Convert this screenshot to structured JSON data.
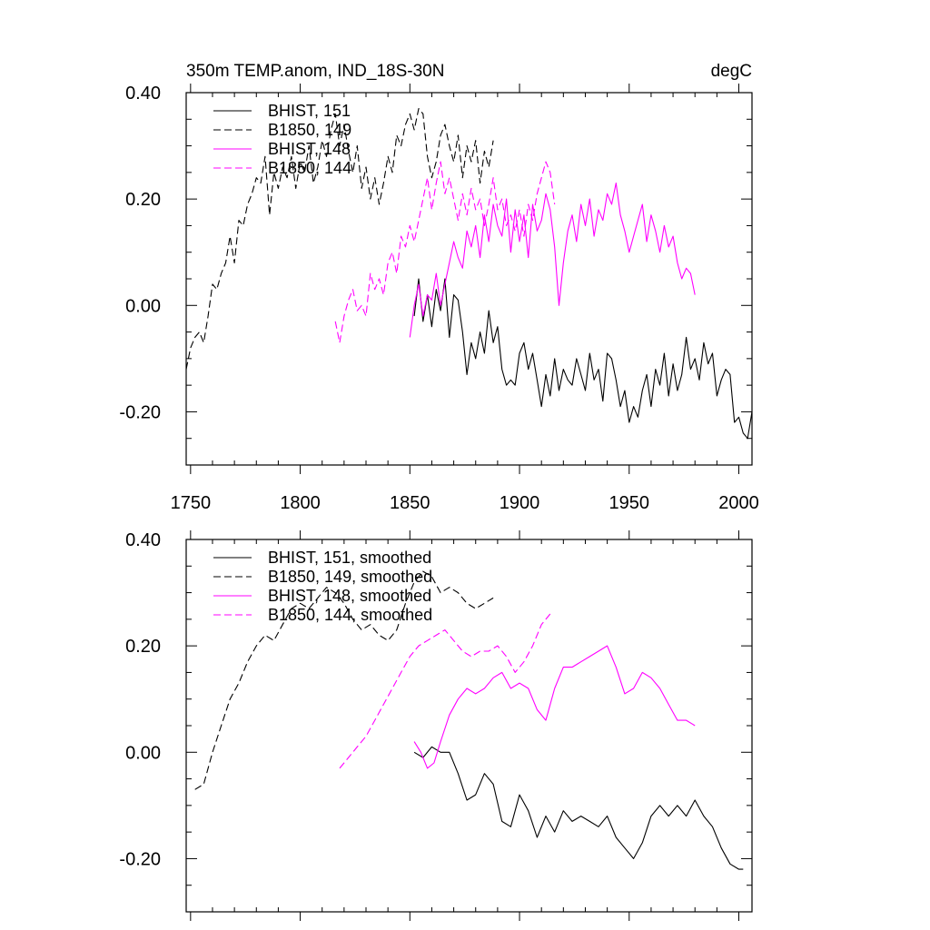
{
  "chart_data": [
    {
      "type": "line",
      "title": "350m TEMP.anom, IND_18S-30N",
      "units": "degC",
      "xlim": [
        1748,
        2006
      ],
      "ylim": [
        -0.3,
        0.4
      ],
      "x_ticks": [
        1750,
        1800,
        1850,
        1900,
        1950,
        2000
      ],
      "x_tick_labels": [
        "1750",
        "1800",
        "1850",
        "1900",
        "1950",
        "2000"
      ],
      "y_ticks": [
        -0.2,
        0.0,
        0.2,
        0.4
      ],
      "y_tick_labels": [
        "-0.20",
        "0.00",
        "0.20",
        "0.40"
      ],
      "series": [
        {
          "name": "BHIST, 151",
          "color": "#000000",
          "dash": "solid",
          "x": [
            1852,
            1854,
            1856,
            1858,
            1860,
            1862,
            1864,
            1866,
            1868,
            1870,
            1872,
            1874,
            1876,
            1878,
            1880,
            1882,
            1884,
            1886,
            1888,
            1890,
            1892,
            1894,
            1896,
            1898,
            1900,
            1902,
            1904,
            1906,
            1908,
            1910,
            1912,
            1914,
            1916,
            1918,
            1920,
            1922,
            1924,
            1926,
            1928,
            1930,
            1932,
            1934,
            1936,
            1938,
            1940,
            1942,
            1944,
            1946,
            1948,
            1950,
            1952,
            1954,
            1956,
            1958,
            1960,
            1962,
            1964,
            1966,
            1968,
            1970,
            1972,
            1974,
            1976,
            1978,
            1980,
            1982,
            1984,
            1986,
            1988,
            1990,
            1992,
            1994,
            1996,
            1998,
            2000,
            2002,
            2004,
            2006
          ],
          "y": [
            -0.02,
            0.05,
            -0.03,
            0.02,
            -0.04,
            0.03,
            -0.01,
            0.05,
            -0.06,
            0.02,
            0.01,
            -0.05,
            -0.13,
            -0.07,
            -0.1,
            -0.05,
            -0.09,
            -0.01,
            -0.07,
            -0.04,
            -0.12,
            -0.15,
            -0.14,
            -0.15,
            -0.09,
            -0.07,
            -0.12,
            -0.09,
            -0.14,
            -0.19,
            -0.13,
            -0.17,
            -0.1,
            -0.16,
            -0.12,
            -0.14,
            -0.15,
            -0.1,
            -0.13,
            -0.16,
            -0.09,
            -0.14,
            -0.12,
            -0.18,
            -0.09,
            -0.1,
            -0.14,
            -0.19,
            -0.16,
            -0.22,
            -0.19,
            -0.21,
            -0.16,
            -0.13,
            -0.19,
            -0.12,
            -0.15,
            -0.09,
            -0.17,
            -0.11,
            -0.16,
            -0.13,
            -0.06,
            -0.12,
            -0.1,
            -0.14,
            -0.07,
            -0.11,
            -0.09,
            -0.17,
            -0.14,
            -0.12,
            -0.13,
            -0.22,
            -0.21,
            -0.24,
            -0.25,
            -0.2
          ]
        },
        {
          "name": "B1850, 149",
          "color": "#000000",
          "dash": "dashed",
          "x": [
            1748,
            1750,
            1752,
            1754,
            1756,
            1758,
            1760,
            1762,
            1764,
            1766,
            1768,
            1770,
            1772,
            1774,
            1776,
            1778,
            1780,
            1782,
            1784,
            1786,
            1788,
            1790,
            1792,
            1794,
            1796,
            1798,
            1800,
            1802,
            1804,
            1806,
            1808,
            1810,
            1812,
            1814,
            1816,
            1818,
            1820,
            1822,
            1824,
            1826,
            1828,
            1830,
            1832,
            1834,
            1836,
            1838,
            1840,
            1842,
            1844,
            1846,
            1848,
            1850,
            1852,
            1854,
            1856,
            1858,
            1860,
            1862,
            1864,
            1866,
            1868,
            1870,
            1872,
            1874,
            1876,
            1878,
            1880,
            1882,
            1884,
            1886,
            1888
          ],
          "y": [
            -0.12,
            -0.08,
            -0.06,
            -0.05,
            -0.07,
            -0.02,
            0.04,
            0.03,
            0.06,
            0.08,
            0.13,
            0.08,
            0.16,
            0.15,
            0.19,
            0.21,
            0.24,
            0.23,
            0.28,
            0.17,
            0.25,
            0.22,
            0.26,
            0.24,
            0.28,
            0.22,
            0.27,
            0.25,
            0.3,
            0.23,
            0.26,
            0.31,
            0.28,
            0.33,
            0.36,
            0.3,
            0.34,
            0.29,
            0.25,
            0.3,
            0.22,
            0.26,
            0.2,
            0.24,
            0.19,
            0.23,
            0.28,
            0.25,
            0.32,
            0.3,
            0.34,
            0.36,
            0.33,
            0.37,
            0.36,
            0.28,
            0.24,
            0.27,
            0.32,
            0.34,
            0.3,
            0.27,
            0.32,
            0.24,
            0.3,
            0.27,
            0.31,
            0.23,
            0.29,
            0.26,
            0.31
          ]
        },
        {
          "name": "BHIST, 148",
          "color": "#ff00ff",
          "dash": "solid",
          "x": [
            1850,
            1852,
            1854,
            1856,
            1858,
            1860,
            1862,
            1864,
            1866,
            1868,
            1870,
            1872,
            1874,
            1876,
            1878,
            1880,
            1882,
            1884,
            1886,
            1888,
            1890,
            1892,
            1894,
            1896,
            1898,
            1900,
            1902,
            1904,
            1906,
            1908,
            1910,
            1912,
            1914,
            1916,
            1918,
            1920,
            1922,
            1924,
            1926,
            1928,
            1930,
            1932,
            1934,
            1936,
            1938,
            1940,
            1942,
            1944,
            1946,
            1948,
            1950,
            1952,
            1954,
            1956,
            1958,
            1960,
            1962,
            1964,
            1966,
            1968,
            1970,
            1972,
            1974,
            1976,
            1978,
            1980
          ],
          "y": [
            -0.06,
            0.0,
            0.04,
            -0.02,
            0.02,
            0.01,
            0.06,
            0.0,
            0.04,
            0.08,
            0.12,
            0.09,
            0.07,
            0.14,
            0.11,
            0.15,
            0.09,
            0.17,
            0.12,
            0.19,
            0.15,
            0.13,
            0.2,
            0.1,
            0.18,
            0.12,
            0.17,
            0.09,
            0.19,
            0.14,
            0.16,
            0.21,
            0.18,
            0.11,
            0.0,
            0.08,
            0.14,
            0.17,
            0.12,
            0.19,
            0.15,
            0.2,
            0.13,
            0.18,
            0.16,
            0.21,
            0.19,
            0.23,
            0.17,
            0.14,
            0.1,
            0.13,
            0.16,
            0.19,
            0.12,
            0.17,
            0.14,
            0.1,
            0.15,
            0.11,
            0.13,
            0.08,
            0.05,
            0.07,
            0.06,
            0.02
          ]
        },
        {
          "name": "B1850, 144",
          "color": "#ff00ff",
          "dash": "dashed",
          "x": [
            1816,
            1818,
            1820,
            1822,
            1824,
            1826,
            1828,
            1830,
            1832,
            1834,
            1836,
            1838,
            1840,
            1842,
            1844,
            1846,
            1848,
            1850,
            1852,
            1854,
            1856,
            1858,
            1860,
            1862,
            1864,
            1866,
            1868,
            1870,
            1872,
            1874,
            1876,
            1878,
            1880,
            1882,
            1884,
            1886,
            1888,
            1890,
            1892,
            1894,
            1896,
            1898,
            1900,
            1902,
            1904,
            1906,
            1908,
            1910,
            1912,
            1914,
            1916
          ],
          "y": [
            -0.03,
            -0.07,
            -0.02,
            0.01,
            0.03,
            -0.01,
            0.0,
            -0.02,
            0.06,
            0.03,
            0.05,
            0.02,
            0.08,
            0.1,
            0.06,
            0.13,
            0.11,
            0.15,
            0.12,
            0.16,
            0.2,
            0.24,
            0.18,
            0.23,
            0.27,
            0.21,
            0.24,
            0.2,
            0.16,
            0.21,
            0.17,
            0.22,
            0.18,
            0.2,
            0.15,
            0.19,
            0.24,
            0.18,
            0.2,
            0.15,
            0.17,
            0.14,
            0.18,
            0.13,
            0.19,
            0.16,
            0.21,
            0.24,
            0.27,
            0.25,
            0.19
          ]
        }
      ],
      "legend_position": "top-left"
    },
    {
      "type": "line",
      "xlim": [
        1748,
        2006
      ],
      "ylim": [
        -0.3,
        0.4
      ],
      "x_ticks": [
        1750,
        1800,
        1850,
        1900,
        1950,
        2000
      ],
      "y_ticks": [
        -0.2,
        0.0,
        0.2,
        0.4
      ],
      "y_tick_labels": [
        "-0.20",
        "0.00",
        "0.20",
        "0.40"
      ],
      "series": [
        {
          "name": "BHIST, 151, smoothed",
          "color": "#000000",
          "dash": "solid",
          "x": [
            1852,
            1856,
            1860,
            1864,
            1868,
            1872,
            1876,
            1880,
            1884,
            1888,
            1892,
            1896,
            1900,
            1904,
            1908,
            1912,
            1916,
            1920,
            1924,
            1928,
            1932,
            1936,
            1940,
            1944,
            1948,
            1952,
            1956,
            1960,
            1964,
            1968,
            1972,
            1976,
            1980,
            1984,
            1988,
            1992,
            1996,
            2000,
            2002
          ],
          "y": [
            0.0,
            -0.01,
            0.01,
            0.0,
            0.0,
            -0.04,
            -0.09,
            -0.08,
            -0.04,
            -0.06,
            -0.13,
            -0.14,
            -0.08,
            -0.11,
            -0.16,
            -0.12,
            -0.15,
            -0.11,
            -0.13,
            -0.12,
            -0.13,
            -0.14,
            -0.12,
            -0.16,
            -0.18,
            -0.2,
            -0.17,
            -0.12,
            -0.1,
            -0.12,
            -0.1,
            -0.12,
            -0.09,
            -0.12,
            -0.14,
            -0.18,
            -0.21,
            -0.22,
            -0.22
          ]
        },
        {
          "name": "B1850, 149, smoothed",
          "color": "#000000",
          "dash": "dashed",
          "x": [
            1752,
            1756,
            1760,
            1764,
            1768,
            1772,
            1776,
            1780,
            1784,
            1788,
            1792,
            1796,
            1800,
            1804,
            1808,
            1812,
            1816,
            1820,
            1824,
            1828,
            1832,
            1836,
            1840,
            1844,
            1848,
            1852,
            1856,
            1860,
            1864,
            1868,
            1872,
            1876,
            1880,
            1884,
            1888
          ],
          "y": [
            -0.07,
            -0.06,
            0.0,
            0.05,
            0.1,
            0.13,
            0.17,
            0.2,
            0.22,
            0.21,
            0.24,
            0.27,
            0.28,
            0.27,
            0.29,
            0.31,
            0.3,
            0.28,
            0.25,
            0.23,
            0.24,
            0.22,
            0.21,
            0.23,
            0.28,
            0.32,
            0.34,
            0.33,
            0.3,
            0.31,
            0.3,
            0.28,
            0.27,
            0.28,
            0.29
          ]
        },
        {
          "name": "BHIST, 148, smoothed",
          "color": "#ff00ff",
          "dash": "solid",
          "x": [
            1852,
            1855,
            1858,
            1861,
            1864,
            1868,
            1872,
            1876,
            1880,
            1884,
            1888,
            1892,
            1896,
            1900,
            1904,
            1908,
            1912,
            1916,
            1920,
            1924,
            1928,
            1932,
            1936,
            1940,
            1944,
            1948,
            1952,
            1956,
            1960,
            1964,
            1968,
            1972,
            1976,
            1980
          ],
          "y": [
            0.02,
            0.0,
            -0.03,
            -0.02,
            0.02,
            0.07,
            0.1,
            0.12,
            0.11,
            0.12,
            0.14,
            0.15,
            0.12,
            0.13,
            0.12,
            0.08,
            0.06,
            0.12,
            0.16,
            0.16,
            0.17,
            0.18,
            0.19,
            0.2,
            0.16,
            0.11,
            0.12,
            0.15,
            0.14,
            0.12,
            0.09,
            0.06,
            0.06,
            0.05
          ]
        },
        {
          "name": "B1850, 144, smoothed",
          "color": "#ff00ff",
          "dash": "dashed",
          "x": [
            1818,
            1822,
            1826,
            1830,
            1834,
            1838,
            1842,
            1846,
            1850,
            1854,
            1858,
            1862,
            1866,
            1870,
            1874,
            1878,
            1882,
            1886,
            1890,
            1894,
            1898,
            1902,
            1906,
            1910,
            1914
          ],
          "y": [
            -0.03,
            -0.01,
            0.01,
            0.03,
            0.06,
            0.09,
            0.12,
            0.15,
            0.18,
            0.2,
            0.21,
            0.22,
            0.23,
            0.21,
            0.19,
            0.18,
            0.19,
            0.19,
            0.2,
            0.18,
            0.15,
            0.17,
            0.2,
            0.24,
            0.26
          ]
        }
      ],
      "legend_position": "top-left"
    }
  ]
}
